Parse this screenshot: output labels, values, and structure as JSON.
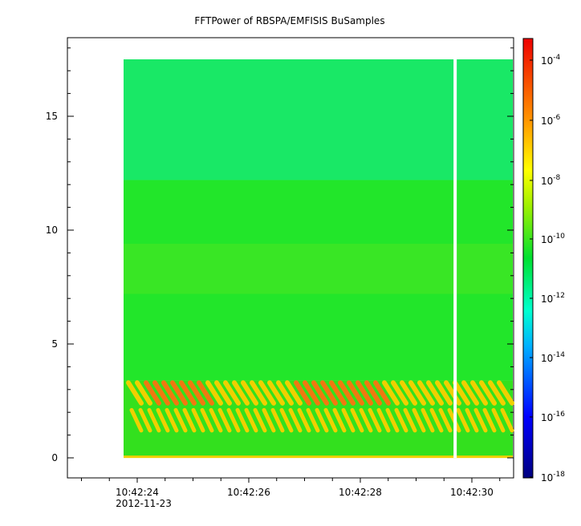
{
  "chart_data": {
    "type": "heatmap",
    "title": "FFTPower of RBSPA/EMFISIS  BuSamples",
    "x_ticks": [
      "10:42:24",
      "10:42:26",
      "10:42:28",
      "10:42:30"
    ],
    "x_date_label": "2012-11-23",
    "y_ticks": [
      "0",
      "5",
      "10",
      "15"
    ],
    "ylim": [
      -0.9,
      18.4
    ],
    "colorbar": {
      "scale": "log",
      "range": [
        1e-18,
        0.0001
      ],
      "tick_base": "10",
      "tick_exponents": [
        "-4",
        "-6",
        "-8",
        "-10",
        "-12",
        "-14",
        "-16",
        "-18"
      ]
    },
    "colors": {
      "upper_band": "#19e866",
      "middle_band": "#22e62a",
      "lower_band": "#33e01e",
      "emission": "#f0d000",
      "emission_strong": "#f07810",
      "gap": "#ffffff"
    },
    "data_gap_time": "10:42:29.7",
    "emission_band_y": [
      1.2,
      3.4
    ]
  }
}
